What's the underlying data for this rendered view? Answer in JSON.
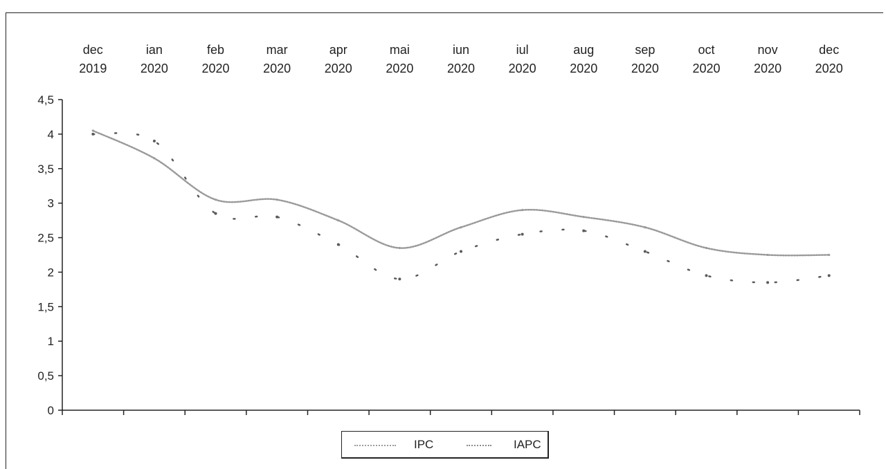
{
  "chart_data": {
    "type": "line",
    "title": "",
    "xlabel": "",
    "ylabel": "",
    "categories": [
      [
        "dec",
        "2019"
      ],
      [
        "ian",
        "2020"
      ],
      [
        "feb",
        "2020"
      ],
      [
        "mar",
        "2020"
      ],
      [
        "apr",
        "2020"
      ],
      [
        "mai",
        "2020"
      ],
      [
        "iun",
        "2020"
      ],
      [
        "iul",
        "2020"
      ],
      [
        "aug",
        "2020"
      ],
      [
        "sep",
        "2020"
      ],
      [
        "oct",
        "2020"
      ],
      [
        "nov",
        "2020"
      ],
      [
        "dec",
        "2020"
      ]
    ],
    "ylim": [
      0,
      4.5
    ],
    "yticks": [
      "0",
      "0,5",
      "1",
      "1,5",
      "2",
      "2,5",
      "3",
      "3,5",
      "4",
      "4,5"
    ],
    "grid": false,
    "legend_position": "bottom-center",
    "series": [
      {
        "name": "IPC",
        "style": "line",
        "color": "#9a9a9a",
        "values": [
          4.05,
          3.65,
          3.05,
          3.05,
          2.75,
          2.35,
          2.65,
          2.9,
          2.8,
          2.65,
          2.35,
          2.25,
          2.25
        ]
      },
      {
        "name": "IAPC",
        "style": "dots",
        "color": "#5a5a5a",
        "values": [
          4.0,
          3.9,
          2.85,
          2.8,
          2.4,
          1.9,
          2.3,
          2.55,
          2.6,
          2.3,
          1.95,
          1.85,
          1.95
        ]
      }
    ]
  }
}
